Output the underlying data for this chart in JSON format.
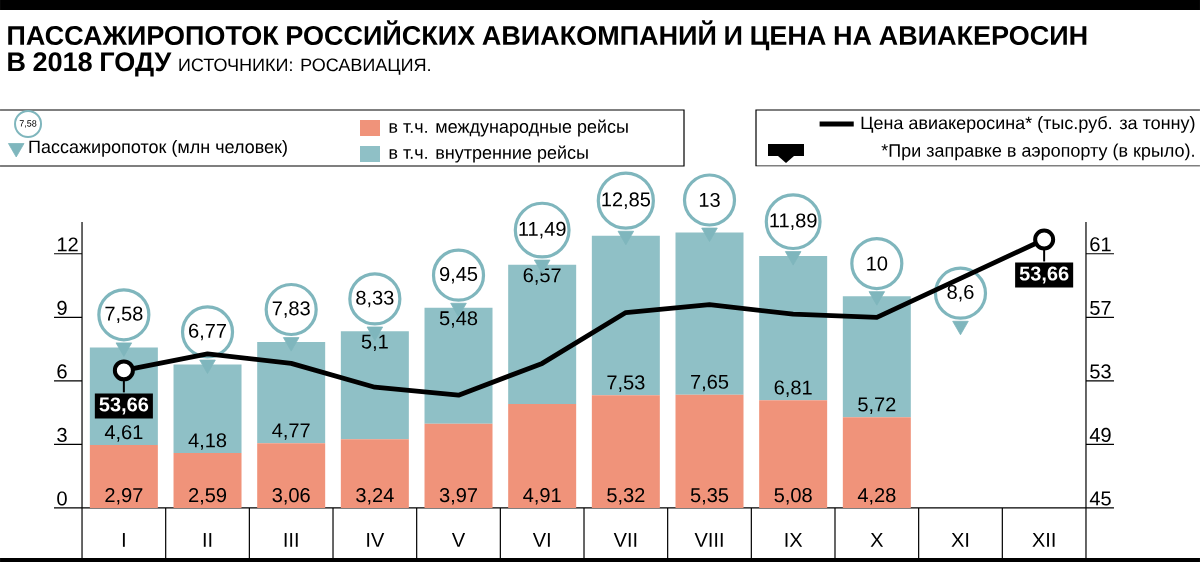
{
  "chart_data": {
    "type": "bar",
    "title": "ПАССАЖИРОПОТОК РОССИЙСКИХ АВИАКОМПАНИЙ И ЦЕНА НА АВИАКЕРОСИН В 2018 ГОДУ",
    "categories": [
      "I",
      "II",
      "III",
      "IV",
      "V",
      "VI",
      "VII",
      "VIII",
      "IX",
      "X",
      "XI",
      "XII"
    ],
    "stacked": true,
    "series": [
      {
        "name": "в т.ч. международные рейсы",
        "color": "#f0937a",
        "values": [
          2.97,
          2.59,
          3.06,
          3.24,
          3.97,
          4.91,
          5.32,
          5.35,
          5.08,
          4.28,
          null,
          null
        ],
        "value_labels": [
          "2,97",
          "2,59",
          "3,06",
          "3,24",
          "3,97",
          "4,91",
          "5,32",
          "5,35",
          "5,08",
          "4,28",
          null,
          null
        ]
      },
      {
        "name": "в т.ч. внутренние рейсы",
        "color": "#8fc0c6",
        "values": [
          4.61,
          4.18,
          4.77,
          5.1,
          5.48,
          6.57,
          7.53,
          7.65,
          6.81,
          5.72,
          null,
          null
        ],
        "value_labels": [
          "4,61",
          "4,18",
          "4,77",
          "5,1",
          "5,48",
          "6,57",
          "7,53",
          "7,65",
          "6,81",
          "5,72",
          null,
          null
        ]
      },
      {
        "name": "Пассажиропоток (млн человек)",
        "type": "scatter",
        "color": "#7fb6bd",
        "values": [
          7.58,
          6.77,
          7.83,
          8.33,
          9.45,
          11.49,
          12.85,
          13,
          11.89,
          10,
          8.6,
          null
        ],
        "value_labels": [
          "7,58",
          "6,77",
          "7,83",
          "8,33",
          "9,45",
          "11,49",
          "12,85",
          "13",
          "11,89",
          "10",
          "8,6",
          null
        ]
      },
      {
        "name": "Цена авиакеросина* (тыс.руб. за тонну)",
        "type": "line",
        "axis": "y2",
        "color": "#000000",
        "values": [
          53.66,
          54.7,
          54.1,
          52.6,
          52.1,
          54.1,
          57.3,
          57.8,
          57.2,
          57.0,
          null,
          61.9
        ]
      }
    ],
    "ylim": [
      0,
      13.5
    ],
    "yticks": [
      0,
      3,
      6,
      9,
      12
    ],
    "y2lim": [
      45,
      63
    ],
    "y2ticks": [
      45,
      49,
      53,
      57,
      61
    ],
    "annotations": [
      "ИСТОЧНИКИ: РОСАВИАЦИЯ.",
      "*При заправке в аэропорту (в крыло).",
      "53,66",
      "53,66"
    ],
    "legend": "top",
    "grid": false
  }
}
